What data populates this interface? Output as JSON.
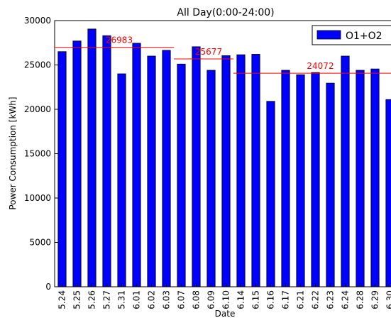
{
  "chart_data": {
    "type": "bar",
    "title": "All Day(0:00-24:00)",
    "x_label": "Date",
    "y_label": "Power Consumption [kWh]",
    "categories": [
      "5.24",
      "5.25",
      "5.26",
      "5.27",
      "5.31",
      "6.01",
      "6.02",
      "6.03",
      "6.07",
      "6.08",
      "6.09",
      "6.10",
      "6.14",
      "6.15",
      "6.16",
      "6.17",
      "6.21",
      "6.22",
      "6.23",
      "6.24",
      "6.28",
      "6.29",
      "6.30"
    ],
    "series": [
      {
        "name": "O1+O2",
        "color": "#0000ff",
        "values": [
          26500,
          27700,
          29050,
          28300,
          24000,
          27450,
          26000,
          26650,
          25100,
          27050,
          24400,
          26050,
          26150,
          26200,
          20900,
          24400,
          23900,
          24150,
          22950,
          26000,
          24400,
          24550,
          21100
        ]
      }
    ],
    "averages": [
      {
        "value": 26983,
        "from": "5.24",
        "to": "6.03",
        "color": "#ff0000"
      },
      {
        "value": 25677,
        "from": "6.07",
        "to": "6.10",
        "color": "#ff0000"
      },
      {
        "value": 24072,
        "from": "6.14",
        "to": "6.30",
        "color": "#ff0000"
      }
    ],
    "ylim": [
      0,
      30000
    ],
    "yticks": [
      0,
      5000,
      10000,
      15000,
      20000,
      25000,
      30000
    ],
    "legend": "upper right"
  }
}
